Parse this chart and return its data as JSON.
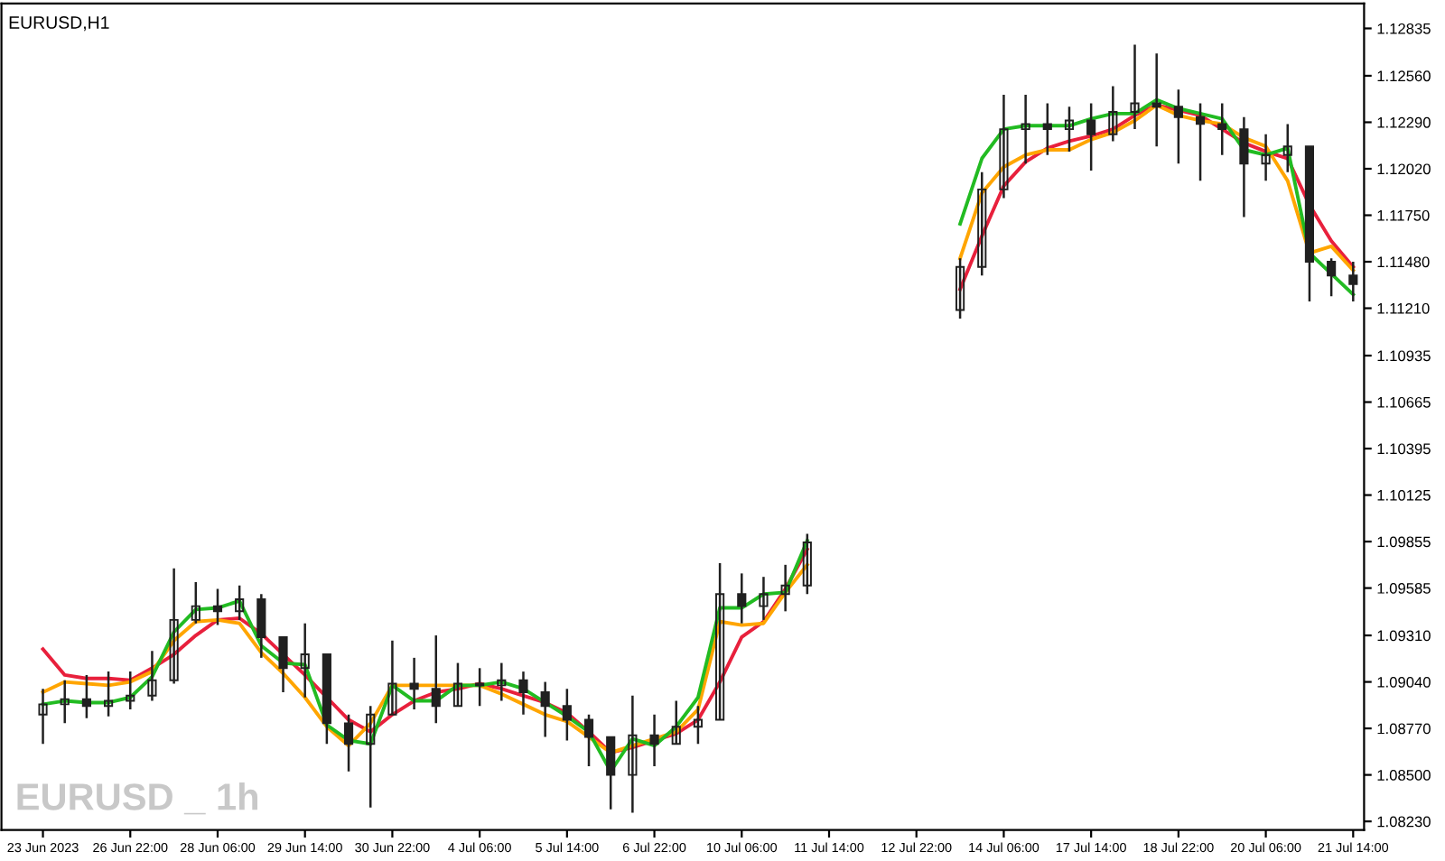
{
  "chart_data": {
    "type": "candlestick",
    "title": "EURUSD,H1",
    "annotations": [
      "EURUSD _ 1h"
    ],
    "categories": [
      "23 Jun 2023",
      null,
      null,
      null,
      "26 Jun 22:00",
      null,
      null,
      null,
      "28 Jun 06:00",
      null,
      null,
      null,
      "29 Jun 14:00",
      null,
      null,
      null,
      "30 Jun 22:00",
      null,
      null,
      null,
      "4 Jul 06:00",
      null,
      null,
      null,
      "5 Jul 14:00",
      null,
      null,
      null,
      "6 Jul 22:00",
      null,
      null,
      null,
      "10 Jul 06:00",
      null,
      null,
      null,
      "11 Jul 14:00",
      null,
      null,
      null,
      "12 Jul 22:00",
      null,
      null,
      null,
      "14 Jul 06:00",
      null,
      null,
      null,
      "17 Jul 14:00",
      null,
      null,
      null,
      "18 Jul 22:00",
      null,
      null,
      null,
      "20 Jul 06:00",
      null,
      null,
      null,
      "21 Jul 14:00"
    ],
    "ohlc": [
      [
        1.0885,
        1.09,
        1.0868,
        1.0891
      ],
      [
        1.0891,
        1.0905,
        1.088,
        1.0894
      ],
      [
        1.0894,
        1.0908,
        1.0883,
        1.089
      ],
      [
        1.089,
        1.091,
        1.0884,
        1.0893
      ],
      [
        1.0893,
        1.091,
        1.0888,
        1.0896
      ],
      [
        1.0896,
        1.0922,
        1.0893,
        1.0905
      ],
      [
        1.0905,
        1.097,
        1.0903,
        1.094
      ],
      [
        1.094,
        1.0962,
        1.0938,
        1.0948
      ],
      [
        1.0948,
        1.0958,
        1.0937,
        1.0945
      ],
      [
        1.0945,
        1.096,
        1.094,
        1.0952
      ],
      [
        1.0952,
        1.0955,
        1.0918,
        1.093
      ],
      [
        1.093,
        1.093,
        1.0898,
        1.0912
      ],
      [
        1.0912,
        1.0938,
        1.0895,
        1.092
      ],
      [
        1.092,
        1.092,
        1.0868,
        1.088
      ],
      [
        1.088,
        1.0885,
        1.0852,
        1.0868
      ],
      [
        1.0868,
        1.089,
        1.0831,
        1.0885
      ],
      [
        1.0885,
        1.0928,
        1.0885,
        1.0903
      ],
      [
        1.0903,
        1.0918,
        1.0888,
        1.09
      ],
      [
        1.09,
        1.0931,
        1.088,
        1.089
      ],
      [
        1.089,
        1.0915,
        1.089,
        1.0903
      ],
      [
        1.0903,
        1.0912,
        1.089,
        1.0902
      ],
      [
        1.0902,
        1.0915,
        1.0893,
        1.0905
      ],
      [
        1.0905,
        1.091,
        1.0885,
        1.0898
      ],
      [
        1.0898,
        1.0904,
        1.0872,
        1.089
      ],
      [
        1.089,
        1.09,
        1.087,
        1.0882
      ],
      [
        1.0882,
        1.0885,
        1.0855,
        1.0872
      ],
      [
        1.0872,
        1.0872,
        1.083,
        1.085
      ],
      [
        1.085,
        1.0896,
        1.0828,
        1.0873
      ],
      [
        1.0873,
        1.0885,
        1.0855,
        1.0868
      ],
      [
        1.0868,
        1.0893,
        1.0868,
        1.0878
      ],
      [
        1.0878,
        1.089,
        1.0868,
        1.0882
      ],
      [
        1.0882,
        1.0973,
        1.0882,
        1.0955
      ],
      [
        1.0955,
        1.0967,
        1.0938,
        1.0948
      ],
      [
        1.0948,
        1.0965,
        1.094,
        1.0955
      ],
      [
        1.0955,
        1.0972,
        1.0945,
        1.096
      ],
      [
        1.096,
        1.099,
        1.0955,
        1.0985
      ],
      null,
      null,
      null,
      null,
      null,
      null,
      [
        1.112,
        1.115,
        1.1115,
        1.1145
      ],
      [
        1.1145,
        1.12,
        1.114,
        1.119
      ],
      [
        1.119,
        1.1245,
        1.1185,
        1.1225
      ],
      [
        1.1225,
        1.1245,
        1.1205,
        1.1228
      ],
      [
        1.1228,
        1.124,
        1.121,
        1.1225
      ],
      [
        1.1225,
        1.1238,
        1.1212,
        1.123
      ],
      [
        1.123,
        1.124,
        1.1201,
        1.1222
      ],
      [
        1.1222,
        1.125,
        1.1218,
        1.1235
      ],
      [
        1.1235,
        1.1274,
        1.1225,
        1.124
      ],
      [
        1.124,
        1.1269,
        1.1215,
        1.1238
      ],
      [
        1.1238,
        1.1248,
        1.1205,
        1.1232
      ],
      [
        1.1232,
        1.124,
        1.1195,
        1.1228
      ],
      [
        1.1228,
        1.124,
        1.121,
        1.1225
      ],
      [
        1.1225,
        1.1232,
        1.1174,
        1.1205
      ],
      [
        1.1205,
        1.1222,
        1.1195,
        1.121
      ],
      [
        1.121,
        1.1228,
        1.12,
        1.1215
      ],
      [
        1.1215,
        1.1215,
        1.1125,
        1.1148
      ],
      [
        1.1148,
        1.115,
        1.1128,
        1.114
      ],
      [
        1.114,
        1.1148,
        1.1125,
        1.1135
      ]
    ],
    "series": [
      {
        "type": "line",
        "color": "#e8203c",
        "values": [
          1.0923,
          1.0908,
          1.0906,
          1.0906,
          1.0905,
          1.0912,
          1.092,
          1.0931,
          1.094,
          1.0941,
          1.0932,
          1.092,
          1.0908,
          1.0895,
          1.0882,
          1.0875,
          1.0885,
          1.0893,
          1.0898,
          1.09,
          1.0903,
          1.09,
          1.0896,
          1.0892,
          1.0886,
          1.0875,
          1.0863,
          1.0866,
          1.087,
          1.0874,
          1.0882,
          1.0904,
          1.093,
          1.0939,
          1.0958,
          1.0981,
          null,
          null,
          null,
          null,
          null,
          null,
          1.1132,
          1.1163,
          1.1192,
          1.1206,
          1.1214,
          1.1218,
          1.1221,
          1.1225,
          1.1233,
          1.1239,
          1.1236,
          1.1233,
          1.1225,
          1.1217,
          1.1212,
          1.1208,
          1.1181,
          1.116,
          1.1145
        ]
      },
      {
        "type": "line",
        "color": "#ffa500",
        "values": [
          1.0898,
          1.0904,
          1.0903,
          1.0902,
          1.0904,
          1.091,
          1.0928,
          1.0939,
          1.094,
          1.0938,
          1.0921,
          1.0909,
          1.0895,
          1.0878,
          1.0867,
          1.088,
          1.0902,
          1.0902,
          1.0902,
          1.0902,
          1.0902,
          1.0897,
          1.0891,
          1.0885,
          1.0881,
          1.0872,
          1.0863,
          1.0867,
          1.0871,
          1.0875,
          1.0888,
          1.0939,
          1.0937,
          1.0938,
          1.0956,
          1.0972,
          null,
          null,
          null,
          null,
          null,
          null,
          1.115,
          1.1188,
          1.1203,
          1.121,
          1.1213,
          1.1213,
          1.1219,
          1.1223,
          1.123,
          1.1239,
          1.1233,
          1.123,
          1.1228,
          1.122,
          1.1215,
          1.1195,
          1.1153,
          1.1157,
          1.1143
        ]
      },
      {
        "type": "line",
        "color": "#22bb22",
        "values": [
          1.0891,
          1.0893,
          1.0892,
          1.0892,
          1.0895,
          1.0907,
          1.0933,
          1.0946,
          1.0947,
          1.0951,
          1.0925,
          1.0915,
          1.0914,
          1.0879,
          1.087,
          1.0868,
          1.0902,
          1.0893,
          1.0893,
          1.0902,
          1.0902,
          1.0904,
          1.09,
          1.0892,
          1.0884,
          1.0875,
          1.0852,
          1.0871,
          1.0867,
          1.0878,
          1.0895,
          1.0947,
          1.0947,
          1.0955,
          1.0956,
          1.0986,
          null,
          null,
          null,
          null,
          null,
          null,
          1.117,
          1.1208,
          1.1225,
          1.1227,
          1.1227,
          1.1227,
          1.1231,
          1.1234,
          1.1234,
          1.1242,
          1.1237,
          1.1234,
          1.1231,
          1.1213,
          1.121,
          1.1214,
          1.1153,
          1.1141,
          1.1129
        ]
      }
    ],
    "ylim": [
      1.0818,
      1.1298
    ],
    "yticks": [
      {
        "value": 1.12835,
        "label": "1.12835"
      },
      {
        "value": 1.1256,
        "label": "1.12560"
      },
      {
        "value": 1.1229,
        "label": "1.12290"
      },
      {
        "value": 1.1202,
        "label": "1.12020"
      },
      {
        "value": 1.1175,
        "label": "1.11750"
      },
      {
        "value": 1.1148,
        "label": "1.11480"
      },
      {
        "value": 1.1121,
        "label": "1.11210"
      },
      {
        "value": 1.10935,
        "label": "1.10935"
      },
      {
        "value": 1.10665,
        "label": "1.10665"
      },
      {
        "value": 1.10395,
        "label": "1.10395"
      },
      {
        "value": 1.10125,
        "label": "1.10125"
      },
      {
        "value": 1.09855,
        "label": "1.09855"
      },
      {
        "value": 1.09585,
        "label": "1.09585"
      },
      {
        "value": 1.0931,
        "label": "1.09310"
      },
      {
        "value": 1.0904,
        "label": "1.09040"
      },
      {
        "value": 1.0877,
        "label": "1.08770"
      },
      {
        "value": 1.085,
        "label": "1.08500"
      },
      {
        "value": 1.0823,
        "label": "1.08230"
      }
    ],
    "grid": false,
    "legend": false
  }
}
